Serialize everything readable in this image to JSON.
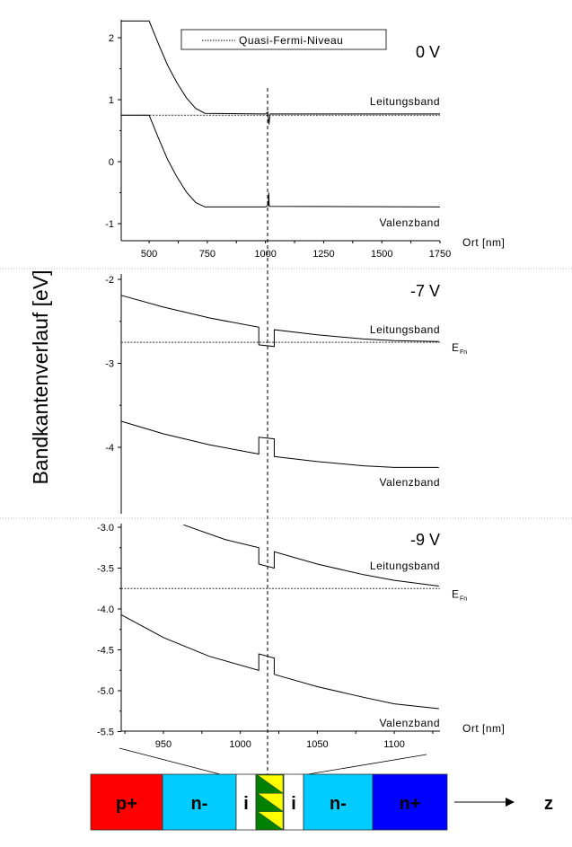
{
  "y_axis_label": "Bandkantenverlauf [eV]",
  "legend": {
    "label": "Quasi-Fermi-Niveau"
  },
  "x_axis_label": "Ort [nm]",
  "fermi_label": "E",
  "fermi_sub": "Fn",
  "chart_data": [
    {
      "type": "line",
      "title": "0 V",
      "xlabel": "Ort [nm]",
      "xlim": [
        380,
        1750
      ],
      "ylim": [
        -1.3,
        2.4
      ],
      "xticks": [
        500,
        750,
        1000,
        1250,
        1500,
        1750
      ],
      "yticks": [
        2,
        1,
        0,
        -1
      ],
      "ytick_labels": [
        "2",
        "1",
        "0",
        "-1"
      ],
      "fermi_level": 0.75,
      "marker_x": 1015,
      "series": [
        {
          "name": "Leitungsband",
          "points": [
            [
              380,
              2.27
            ],
            [
              500,
              2.27
            ],
            [
              540,
              1.9
            ],
            [
              580,
              1.55
            ],
            [
              620,
              1.27
            ],
            [
              660,
              1.03
            ],
            [
              700,
              0.86
            ],
            [
              740,
              0.78
            ],
            [
              1000,
              0.77
            ],
            [
              1010,
              0.8
            ],
            [
              1015,
              0.6
            ],
            [
              1020,
              0.77
            ],
            [
              1750,
              0.77
            ]
          ]
        },
        {
          "name": "Valenzband",
          "points": [
            [
              380,
              0.75
            ],
            [
              500,
              0.75
            ],
            [
              540,
              0.38
            ],
            [
              580,
              0.03
            ],
            [
              620,
              -0.25
            ],
            [
              660,
              -0.49
            ],
            [
              700,
              -0.66
            ],
            [
              740,
              -0.73
            ],
            [
              1000,
              -0.73
            ],
            [
              1012,
              -0.7
            ],
            [
              1014,
              -0.5
            ],
            [
              1016,
              -0.72
            ],
            [
              1750,
              -0.73
            ]
          ]
        }
      ]
    },
    {
      "type": "line",
      "title": "-7 V",
      "xlim": [
        922.6,
        1129.7
      ],
      "ylim": [
        -4.85,
        -1.95
      ],
      "yticks": [
        -2,
        -3,
        -4
      ],
      "ytick_labels": [
        "-2",
        "-3",
        "-4"
      ],
      "fermi_level": -2.75,
      "marker_x": 1017,
      "series": [
        {
          "name": "Leitungsband",
          "points": [
            [
              922.6,
              -2.19
            ],
            [
              950,
              -2.33
            ],
            [
              980,
              -2.46
            ],
            [
              1012,
              -2.57
            ],
            [
              1012,
              -2.78
            ],
            [
              1022,
              -2.8
            ],
            [
              1022,
              -2.6
            ],
            [
              1050,
              -2.66
            ],
            [
              1080,
              -2.71
            ],
            [
              1100,
              -2.73
            ],
            [
              1129,
              -2.74
            ]
          ]
        },
        {
          "name": "Valenzband",
          "points": [
            [
              922.6,
              -3.69
            ],
            [
              950,
              -3.84
            ],
            [
              980,
              -3.97
            ],
            [
              1012,
              -4.08
            ],
            [
              1012,
              -3.88
            ],
            [
              1022,
              -3.9
            ],
            [
              1022,
              -4.11
            ],
            [
              1050,
              -4.17
            ],
            [
              1080,
              -4.22
            ],
            [
              1100,
              -4.24
            ],
            [
              1129,
              -4.24
            ]
          ]
        }
      ]
    },
    {
      "type": "line",
      "title": "-9 V",
      "xlabel": "Ort [nm]",
      "xlim": [
        922.6,
        1129.7
      ],
      "ylim": [
        -5.5,
        -2.95
      ],
      "xticks": [
        950,
        1000,
        1050,
        1100
      ],
      "yticks": [
        -3.0,
        -3.5,
        -4.0,
        -4.5,
        -5.0,
        -5.5
      ],
      "ytick_labels": [
        "-3.0",
        "-3.5",
        "-4.0",
        "-4.5",
        "-5.0",
        "-5.5"
      ],
      "fermi_level": -3.75,
      "marker_x": 1017,
      "series": [
        {
          "name": "Leitungsband",
          "points": [
            [
              963,
              -2.97
            ],
            [
              990,
              -3.15
            ],
            [
              1012,
              -3.25
            ],
            [
              1012,
              -3.45
            ],
            [
              1022,
              -3.5
            ],
            [
              1022,
              -3.3
            ],
            [
              1050,
              -3.45
            ],
            [
              1080,
              -3.58
            ],
            [
              1100,
              -3.65
            ],
            [
              1129,
              -3.72
            ]
          ]
        },
        {
          "name": "Valenzband",
          "points": [
            [
              922.6,
              -4.07
            ],
            [
              950,
              -4.35
            ],
            [
              980,
              -4.58
            ],
            [
              1012,
              -4.75
            ],
            [
              1012,
              -4.55
            ],
            [
              1022,
              -4.6
            ],
            [
              1022,
              -4.8
            ],
            [
              1050,
              -4.95
            ],
            [
              1080,
              -5.08
            ],
            [
              1100,
              -5.16
            ],
            [
              1129,
              -5.22
            ]
          ]
        }
      ]
    }
  ],
  "device": {
    "segments": [
      {
        "label": "p+",
        "color": "#ff0000"
      },
      {
        "label": "n-",
        "color": "#00ccff"
      },
      {
        "label": "i",
        "color": "#ffffff"
      },
      {
        "label": "",
        "color": "#008000"
      },
      {
        "label": "i",
        "color": "#ffffff"
      },
      {
        "label": "n-",
        "color": "#00ccff"
      },
      {
        "label": "n+",
        "color": "#0000ff"
      }
    ],
    "well_triangle_color": "#ffff00",
    "axis_label": "z"
  }
}
